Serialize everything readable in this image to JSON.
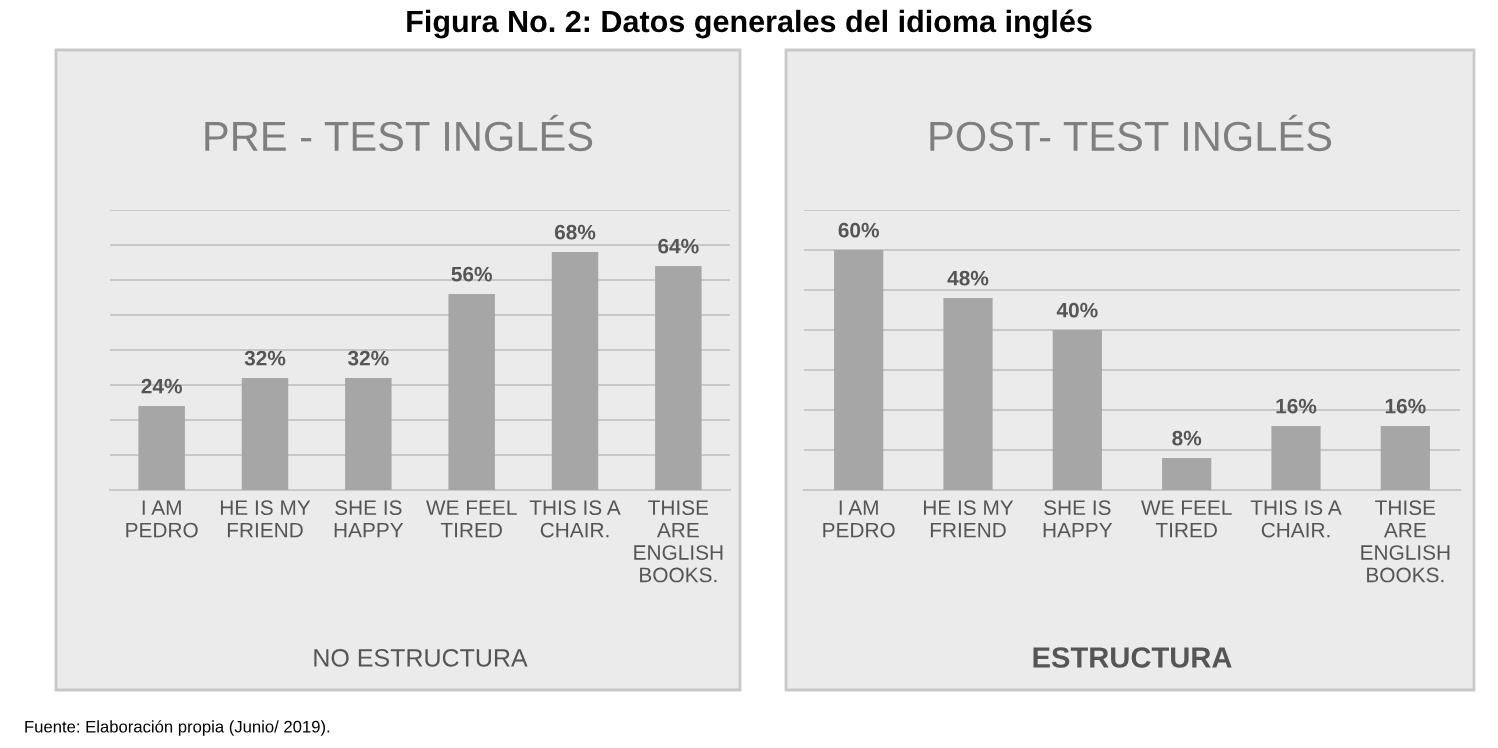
{
  "chart_data": [
    {
      "type": "bar",
      "title": "PRE - TEST INGLÉS",
      "xlabel": "NO ESTRUCTURA",
      "categories": [
        "I AM\nPEDRO",
        "HE IS MY\nFRIEND",
        "SHE IS\nHAPPY",
        "WE FEEL\nTIRED",
        "THIS IS A\nCHAIR.",
        "THISE\nARE\nENGLISH\nBOOKS."
      ],
      "values": [
        24,
        32,
        32,
        56,
        68,
        64
      ],
      "value_labels": [
        "24%",
        "32%",
        "32%",
        "56%",
        "68%",
        "64%"
      ],
      "color": "#a6a6a6",
      "ylim": [
        0,
        80
      ],
      "yticks": [
        {
          "value": 0,
          "label": null
        },
        {
          "value": 10,
          "label": null
        },
        {
          "value": 20,
          "label": null
        },
        {
          "value": 30,
          "label": null
        },
        {
          "value": 40,
          "label": null
        },
        {
          "value": 50,
          "label": null
        },
        {
          "value": 60,
          "label": null
        },
        {
          "value": 70,
          "label": null
        },
        {
          "value": 80,
          "label": null
        }
      ],
      "tick_labels": "x",
      "grid": "y",
      "annotations": [
        "Figura No. 2: Datos generales del idioma inglés",
        "Fuente: Elaboración propia (Junio/ 2019)."
      ]
    },
    {
      "type": "bar",
      "title": "POST- TEST INGLÉS",
      "xlabel": "ESTRUCTURA",
      "categories": [
        "I AM\nPEDRO",
        "HE IS MY\nFRIEND",
        "SHE IS\nHAPPY",
        "WE FEEL\nTIRED",
        "THIS IS A\nCHAIR.",
        "THISE\nARE\nENGLISH\nBOOKS."
      ],
      "values": [
        60,
        48,
        40,
        8,
        16,
        16
      ],
      "value_labels": [
        "60%",
        "48%",
        "40%",
        "8%",
        "16%",
        "16%"
      ],
      "color": "#a6a6a6",
      "ylim": [
        0,
        70
      ],
      "yticks": [
        {
          "value": 0,
          "label": null
        },
        {
          "value": 10,
          "label": null
        },
        {
          "value": 20,
          "label": null
        },
        {
          "value": 30,
          "label": null
        },
        {
          "value": 40,
          "label": null
        },
        {
          "value": 50,
          "label": null
        },
        {
          "value": 60,
          "label": null
        },
        {
          "value": 70,
          "label": null
        }
      ],
      "tick_labels": "x",
      "grid": "y"
    }
  ]
}
